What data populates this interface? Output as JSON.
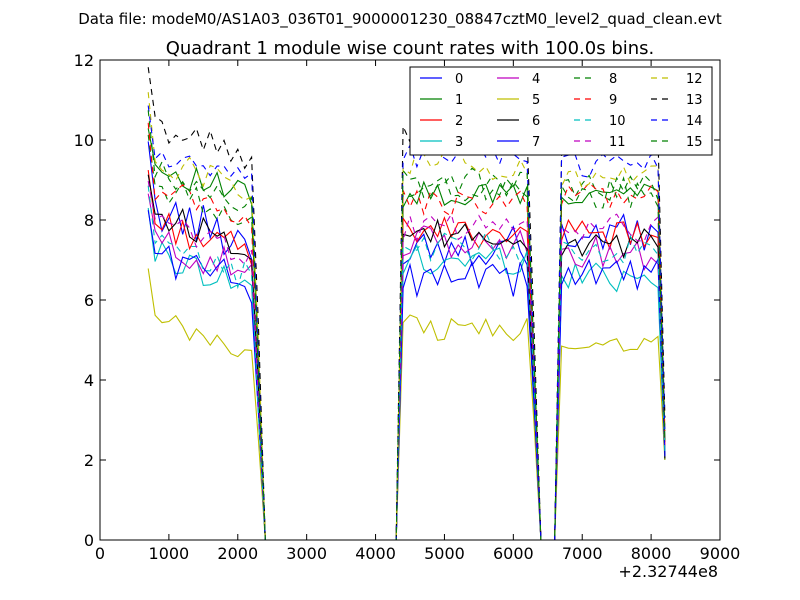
{
  "suptitle": "Data file: modeM0/AS1A03_036T01_9000001230_08847cztM0_level2_quad_clean.evt",
  "chart_data": {
    "type": "line",
    "title": "Quadrant 1 module wise count rates with 100.0s bins.",
    "xlabel": "",
    "ylabel": "",
    "xlim": [
      0,
      9000
    ],
    "ylim": [
      0,
      12
    ],
    "x_offset_label": "+2.32744e8",
    "xticks": [
      0,
      1000,
      2000,
      3000,
      4000,
      5000,
      6000,
      7000,
      8000,
      9000
    ],
    "yticks": [
      0,
      2,
      4,
      6,
      8,
      10,
      12
    ],
    "grid": false,
    "legend_position": "top-right",
    "legend_columns": 4,
    "segments": [
      {
        "start": 700,
        "n": 17
      },
      {
        "start": 4400,
        "n": 20
      },
      {
        "start": 6700,
        "n": 16
      }
    ],
    "series": [
      {
        "name": "0",
        "color": "#0000ff",
        "dash": false,
        "levels": [
          7.7,
          7.4,
          7.6
        ],
        "amp": 0.55
      },
      {
        "name": "1",
        "color": "#008000",
        "dash": false,
        "levels": [
          8.8,
          8.6,
          8.7
        ],
        "amp": 0.35
      },
      {
        "name": "2",
        "color": "#ff0000",
        "dash": false,
        "levels": [
          7.4,
          7.7,
          7.6
        ],
        "amp": 0.4
      },
      {
        "name": "3",
        "color": "#00bfbf",
        "dash": false,
        "levels": [
          6.6,
          7.0,
          6.6
        ],
        "amp": 0.4
      },
      {
        "name": "4",
        "color": "#bf00bf",
        "dash": false,
        "levels": [
          6.9,
          7.4,
          7.2
        ],
        "amp": 0.45
      },
      {
        "name": "5",
        "color": "#bfbf00",
        "dash": false,
        "levels": [
          4.9,
          5.3,
          5.0
        ],
        "amp": 0.35
      },
      {
        "name": "6",
        "color": "#000000",
        "dash": false,
        "levels": [
          7.6,
          7.6,
          7.4
        ],
        "amp": 0.4
      },
      {
        "name": "7",
        "color": "#0000ff",
        "dash": false,
        "levels": [
          6.6,
          6.5,
          6.7
        ],
        "amp": 0.45
      },
      {
        "name": "8",
        "color": "#008000",
        "dash": true,
        "levels": [
          8.3,
          8.8,
          8.8
        ],
        "amp": 0.35
      },
      {
        "name": "9",
        "color": "#ff0000",
        "dash": true,
        "levels": [
          8.3,
          8.4,
          8.6
        ],
        "amp": 0.35
      },
      {
        "name": "10",
        "color": "#00bfbf",
        "dash": true,
        "levels": [
          6.8,
          7.3,
          7.2
        ],
        "amp": 0.4
      },
      {
        "name": "11",
        "color": "#bf00bf",
        "dash": true,
        "levels": [
          7.4,
          7.8,
          7.8
        ],
        "amp": 0.35
      },
      {
        "name": "12",
        "color": "#bfbf00",
        "dash": true,
        "levels": [
          9.0,
          9.4,
          9.0
        ],
        "amp": 0.4
      },
      {
        "name": "13",
        "color": "#000000",
        "dash": true,
        "levels": [
          9.8,
          10.2,
          10.0
        ],
        "amp": 0.35
      },
      {
        "name": "14",
        "color": "#0000ff",
        "dash": true,
        "levels": [
          9.1,
          9.6,
          9.4
        ],
        "amp": 0.35
      },
      {
        "name": "15",
        "color": "#008000",
        "dash": true,
        "levels": [
          8.6,
          8.9,
          8.7
        ],
        "amp": 0.4
      }
    ]
  }
}
